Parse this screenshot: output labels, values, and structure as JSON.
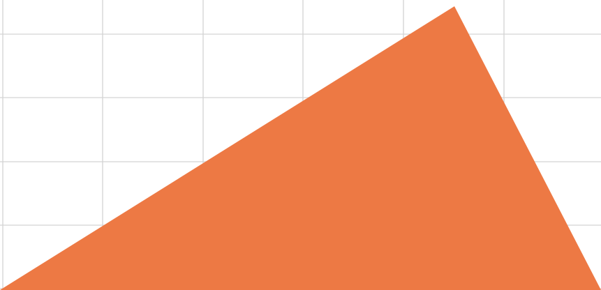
{
  "canvas": {
    "background": "#ffffff",
    "grid_color": "#d3d3d3",
    "grid_visible": true
  },
  "shape": {
    "name": "triangle",
    "fill": "#ed7944"
  }
}
